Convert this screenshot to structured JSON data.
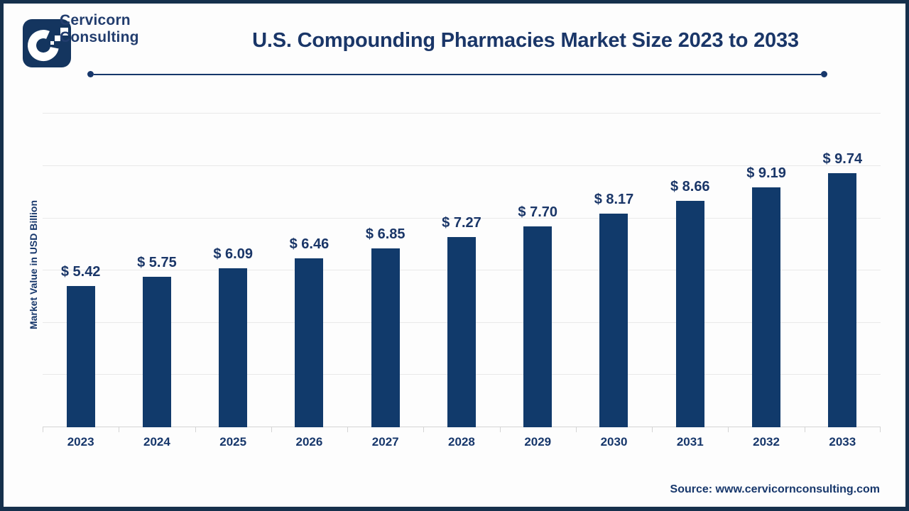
{
  "brand": {
    "line1": "Cervicorn",
    "line2": "Consulting"
  },
  "title": "U.S. Compounding Pharmacies Market Size 2023 to 2033",
  "chart_data": {
    "type": "bar",
    "title": "U.S. Compounding Pharmacies Market Size 2023 to 2033",
    "categories": [
      "2023",
      "2024",
      "2025",
      "2026",
      "2027",
      "2028",
      "2029",
      "2030",
      "2031",
      "2032",
      "2033"
    ],
    "values": [
      5.42,
      5.75,
      6.09,
      6.46,
      6.85,
      7.27,
      7.7,
      8.17,
      8.66,
      9.19,
      9.74
    ],
    "value_prefix": "$ ",
    "xlabel": "",
    "ylabel": "Market Value in USD Billion",
    "ylim": [
      0,
      12
    ],
    "grid": true,
    "gridline_step": 2,
    "legend": "none",
    "bar_color": "#113A6B",
    "label_color": "#1A3668"
  },
  "footer": {
    "source": "Source: www.cervicornconsulting.com"
  },
  "colors": {
    "border_navy": "#16304C",
    "text_navy": "#17376B",
    "bar_navy": "#113A6B",
    "gridline": "#E9E9E9",
    "axis_line": "#D4D4D4",
    "background": "#FDFDFD"
  }
}
